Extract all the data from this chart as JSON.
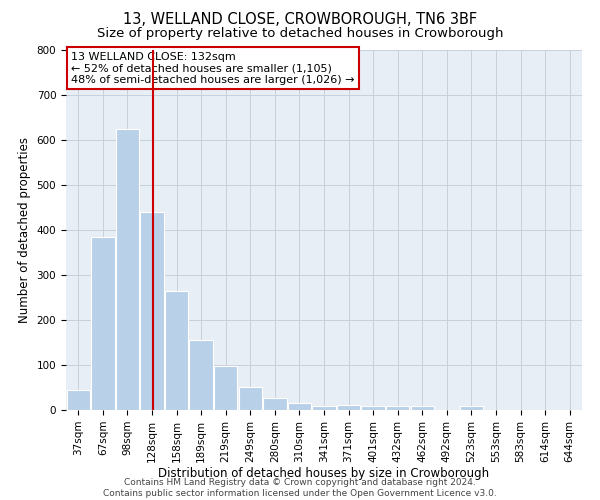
{
  "title1": "13, WELLAND CLOSE, CROWBOROUGH, TN6 3BF",
  "title2": "Size of property relative to detached houses in Crowborough",
  "xlabel": "Distribution of detached houses by size in Crowborough",
  "ylabel": "Number of detached properties",
  "categories": [
    "37sqm",
    "67sqm",
    "98sqm",
    "128sqm",
    "158sqm",
    "189sqm",
    "219sqm",
    "249sqm",
    "280sqm",
    "310sqm",
    "341sqm",
    "371sqm",
    "401sqm",
    "432sqm",
    "462sqm",
    "492sqm",
    "523sqm",
    "553sqm",
    "583sqm",
    "614sqm",
    "644sqm"
  ],
  "values": [
    45,
    385,
    625,
    440,
    265,
    155,
    97,
    52,
    27,
    15,
    10,
    12,
    10,
    10,
    8,
    0,
    8,
    0,
    0,
    0,
    0
  ],
  "bar_color": "#b8d0e8",
  "bar_edgecolor": "#ffffff",
  "bar_width": 0.95,
  "ylim": [
    0,
    800
  ],
  "yticks": [
    0,
    100,
    200,
    300,
    400,
    500,
    600,
    700,
    800
  ],
  "grid_color": "#c8d0dc",
  "background_color": "#e8eef5",
  "annotation_line1": "13 WELLAND CLOSE: 132sqm",
  "annotation_line2": "← 52% of detached houses are smaller (1,105)",
  "annotation_line3": "48% of semi-detached houses are larger (1,026) →",
  "annotation_box_edgecolor": "#cc0000",
  "vline_color": "#cc0000",
  "vline_x_idx": 3.06,
  "footer": "Contains HM Land Registry data © Crown copyright and database right 2024.\nContains public sector information licensed under the Open Government Licence v3.0.",
  "title1_fontsize": 10.5,
  "title2_fontsize": 9.5,
  "xlabel_fontsize": 8.5,
  "ylabel_fontsize": 8.5,
  "tick_fontsize": 7.5,
  "annot_fontsize": 8,
  "footer_fontsize": 6.5
}
